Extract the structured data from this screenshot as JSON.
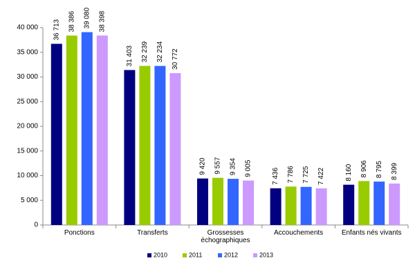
{
  "chart_data": {
    "type": "bar",
    "categories": [
      "Ponctions",
      "Transferts",
      "Grossesses échographiques",
      "Accouchements",
      "Enfants nés vivants"
    ],
    "series": [
      {
        "name": "2010",
        "color": "#000080",
        "values": [
          36713,
          31403,
          9420,
          7436,
          8160
        ],
        "value_labels": [
          "36 713",
          "31 403",
          "9 420",
          "7 436",
          "8 160"
        ]
      },
      {
        "name": "2011",
        "color": "#99cc00",
        "values": [
          38386,
          32239,
          9557,
          7786,
          8906
        ],
        "value_labels": [
          "38 386",
          "32 239",
          "9 557",
          "7 786",
          "8 906"
        ]
      },
      {
        "name": "2012",
        "color": "#3366ff",
        "values": [
          39080,
          32234,
          9354,
          7725,
          8795
        ],
        "value_labels": [
          "39 080",
          "32 234",
          "9 354",
          "7 725",
          "8 795"
        ]
      },
      {
        "name": "2013",
        "color": "#cc99ff",
        "values": [
          38398,
          30772,
          9005,
          7422,
          8399
        ],
        "value_labels": [
          "38 398",
          "30 772",
          "9 005",
          "7 422",
          "8 399"
        ]
      }
    ],
    "ylim": [
      0,
      40000
    ],
    "yticks": [
      0,
      {
        "value": 5000,
        "label": "5 000"
      },
      {
        "value": 10000,
        "label": "10 000"
      },
      {
        "value": 15000,
        "label": "15 000"
      },
      {
        "value": 20000,
        "label": "20 000"
      },
      {
        "value": 25000,
        "label": "25 000"
      },
      {
        "value": 30000,
        "label": "30 000"
      },
      {
        "value": 35000,
        "label": "35 000"
      },
      {
        "value": 40000,
        "label": "40 000"
      }
    ],
    "grid": false,
    "legend": "bottom"
  }
}
